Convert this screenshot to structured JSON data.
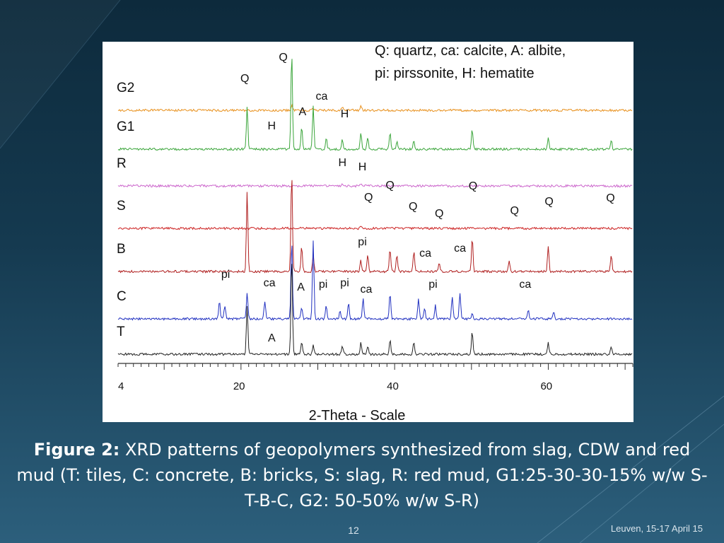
{
  "legend_text": {
    "line1": "Q: quartz, ca: calcite, A: albite,",
    "line2": "pi: pirssonite, H: hematite"
  },
  "caption": {
    "label": "Figure 2:",
    "text": " XRD patterns of geopolymers synthesized from slag, CDW and red mud (T: tiles, C: concrete, B: bricks, S: slag, R: red mud, G1:25-30-30-15% w/w S-T-B-C, G2: 50-50% w/w S-R)"
  },
  "footer": {
    "slide_number": "12",
    "event": "Leuven, 15-17 April 15"
  },
  "chart_data": {
    "type": "line",
    "title": "",
    "xlabel": "2-Theta - Scale",
    "ylabel": "",
    "xlim": [
      4,
      71
    ],
    "x_ticks": [
      4,
      20,
      40,
      60
    ],
    "grid": false,
    "series": [
      {
        "name": "G2",
        "color": "#e8901c",
        "peaks": [
          [
            26.6,
            0.6
          ],
          [
            29.4,
            0.25
          ],
          [
            33.2,
            0.3
          ],
          [
            35.6,
            0.6
          ]
        ]
      },
      {
        "name": "G1",
        "color": "#3aa53a",
        "peaks": [
          [
            20.8,
            1.5
          ],
          [
            26.6,
            3.5
          ],
          [
            27.9,
            0.8
          ],
          [
            29.4,
            1.5
          ],
          [
            31.1,
            0.4
          ],
          [
            33.2,
            0.35
          ],
          [
            35.6,
            0.6
          ],
          [
            36.5,
            0.4
          ],
          [
            39.4,
            0.6
          ],
          [
            40.3,
            0.3
          ],
          [
            42.5,
            0.3
          ],
          [
            50.1,
            0.7
          ],
          [
            60.0,
            0.4
          ],
          [
            68.2,
            0.3
          ]
        ]
      },
      {
        "name": "R",
        "color": "#cc66cc",
        "peaks": [
          [
            33.2,
            0.3
          ],
          [
            35.6,
            0.25
          ]
        ]
      },
      {
        "name": "S",
        "color": "#cc2222",
        "peaks": [
          [
            29.4,
            0.2
          ],
          [
            35.6,
            0.35
          ]
        ]
      },
      {
        "name": "B",
        "color": "#b02020",
        "peaks": [
          [
            20.8,
            2.8
          ],
          [
            26.6,
            3.5
          ],
          [
            27.9,
            0.9
          ],
          [
            29.4,
            0.6
          ],
          [
            35.6,
            0.4
          ],
          [
            36.5,
            0.6
          ],
          [
            39.4,
            0.8
          ],
          [
            40.3,
            0.6
          ],
          [
            42.5,
            0.7
          ],
          [
            45.8,
            0.3
          ],
          [
            50.1,
            1.2
          ],
          [
            54.9,
            0.4
          ],
          [
            60.0,
            0.9
          ],
          [
            68.2,
            0.6
          ]
        ]
      },
      {
        "name": "C",
        "color": "#2030c0",
        "peaks": [
          [
            17.2,
            0.8
          ],
          [
            17.9,
            0.6
          ],
          [
            20.8,
            1.1
          ],
          [
            23.1,
            0.8
          ],
          [
            26.6,
            3.5
          ],
          [
            27.9,
            0.5
          ],
          [
            29.4,
            3.5
          ],
          [
            31.1,
            0.6
          ],
          [
            32.9,
            0.4
          ],
          [
            34.0,
            0.7
          ],
          [
            35.9,
            0.9
          ],
          [
            39.4,
            1.1
          ],
          [
            43.1,
            0.9
          ],
          [
            43.9,
            0.5
          ],
          [
            45.3,
            0.6
          ],
          [
            47.5,
            1.0
          ],
          [
            48.5,
            1.1
          ],
          [
            50.1,
            0.3
          ],
          [
            57.4,
            0.4
          ],
          [
            60.7,
            0.3
          ]
        ]
      },
      {
        "name": "T",
        "color": "#222222",
        "peaks": [
          [
            20.8,
            1.7
          ],
          [
            26.6,
            3.5
          ],
          [
            27.9,
            0.4
          ],
          [
            29.4,
            0.3
          ],
          [
            33.2,
            0.3
          ],
          [
            35.6,
            0.4
          ],
          [
            36.5,
            0.3
          ],
          [
            39.4,
            0.5
          ],
          [
            42.5,
            0.4
          ],
          [
            50.1,
            0.8
          ],
          [
            60.0,
            0.4
          ],
          [
            68.2,
            0.3
          ]
        ]
      }
    ],
    "annotations": [
      {
        "text": "Q",
        "series": "G2",
        "x": 25.5,
        "dy": 70
      },
      {
        "text": "Q",
        "series": "G2",
        "x": 20.5,
        "dy": 40
      },
      {
        "text": "ca",
        "series": "G2",
        "x": 30.5,
        "dy": 15
      },
      {
        "text": "A",
        "series": "G1",
        "x": 28.0,
        "dy": 48
      },
      {
        "text": "H",
        "series": "G1",
        "x": 33.5,
        "dy": 45
      },
      {
        "text": "H",
        "series": "G1",
        "x": 24.0,
        "dy": 28
      },
      {
        "text": "H",
        "series": "R",
        "x": 33.2,
        "dy": 28
      },
      {
        "text": "H",
        "series": "R",
        "x": 35.8,
        "dy": 22
      },
      {
        "text": "Q",
        "series": "S",
        "x": 39.4,
        "dy": 56
      },
      {
        "text": "Q",
        "series": "S",
        "x": 50.2,
        "dy": 55
      },
      {
        "text": "Q",
        "series": "S",
        "x": 36.6,
        "dy": 39
      },
      {
        "text": "Q",
        "series": "S",
        "x": 42.4,
        "dy": 26
      },
      {
        "text": "Q",
        "series": "S",
        "x": 45.8,
        "dy": 16
      },
      {
        "text": "Q",
        "series": "S",
        "x": 55.6,
        "dy": 20
      },
      {
        "text": "Q",
        "series": "S",
        "x": 60.1,
        "dy": 33
      },
      {
        "text": "Q",
        "series": "S",
        "x": 68.1,
        "dy": 38
      },
      {
        "text": "pi",
        "series": "B",
        "x": 35.8,
        "dy": 37
      },
      {
        "text": "ca",
        "series": "B",
        "x": 44.0,
        "dy": 21
      },
      {
        "text": "ca",
        "series": "B",
        "x": 48.5,
        "dy": 28
      },
      {
        "text": "pi",
        "series": "C",
        "x": 18.0,
        "dy": 58
      },
      {
        "text": "ca",
        "series": "C",
        "x": 23.7,
        "dy": 46
      },
      {
        "text": "A",
        "series": "C",
        "x": 27.8,
        "dy": 40
      },
      {
        "text": "pi",
        "series": "C",
        "x": 30.7,
        "dy": 44
      },
      {
        "text": "pi",
        "series": "C",
        "x": 33.5,
        "dy": 46
      },
      {
        "text": "ca",
        "series": "C",
        "x": 36.3,
        "dy": 37
      },
      {
        "text": "pi",
        "series": "C",
        "x": 45.0,
        "dy": 44
      },
      {
        "text": "ca",
        "series": "C",
        "x": 57.0,
        "dy": 44
      },
      {
        "text": "A",
        "series": "T",
        "x": 24.0,
        "dy": 18
      }
    ]
  }
}
